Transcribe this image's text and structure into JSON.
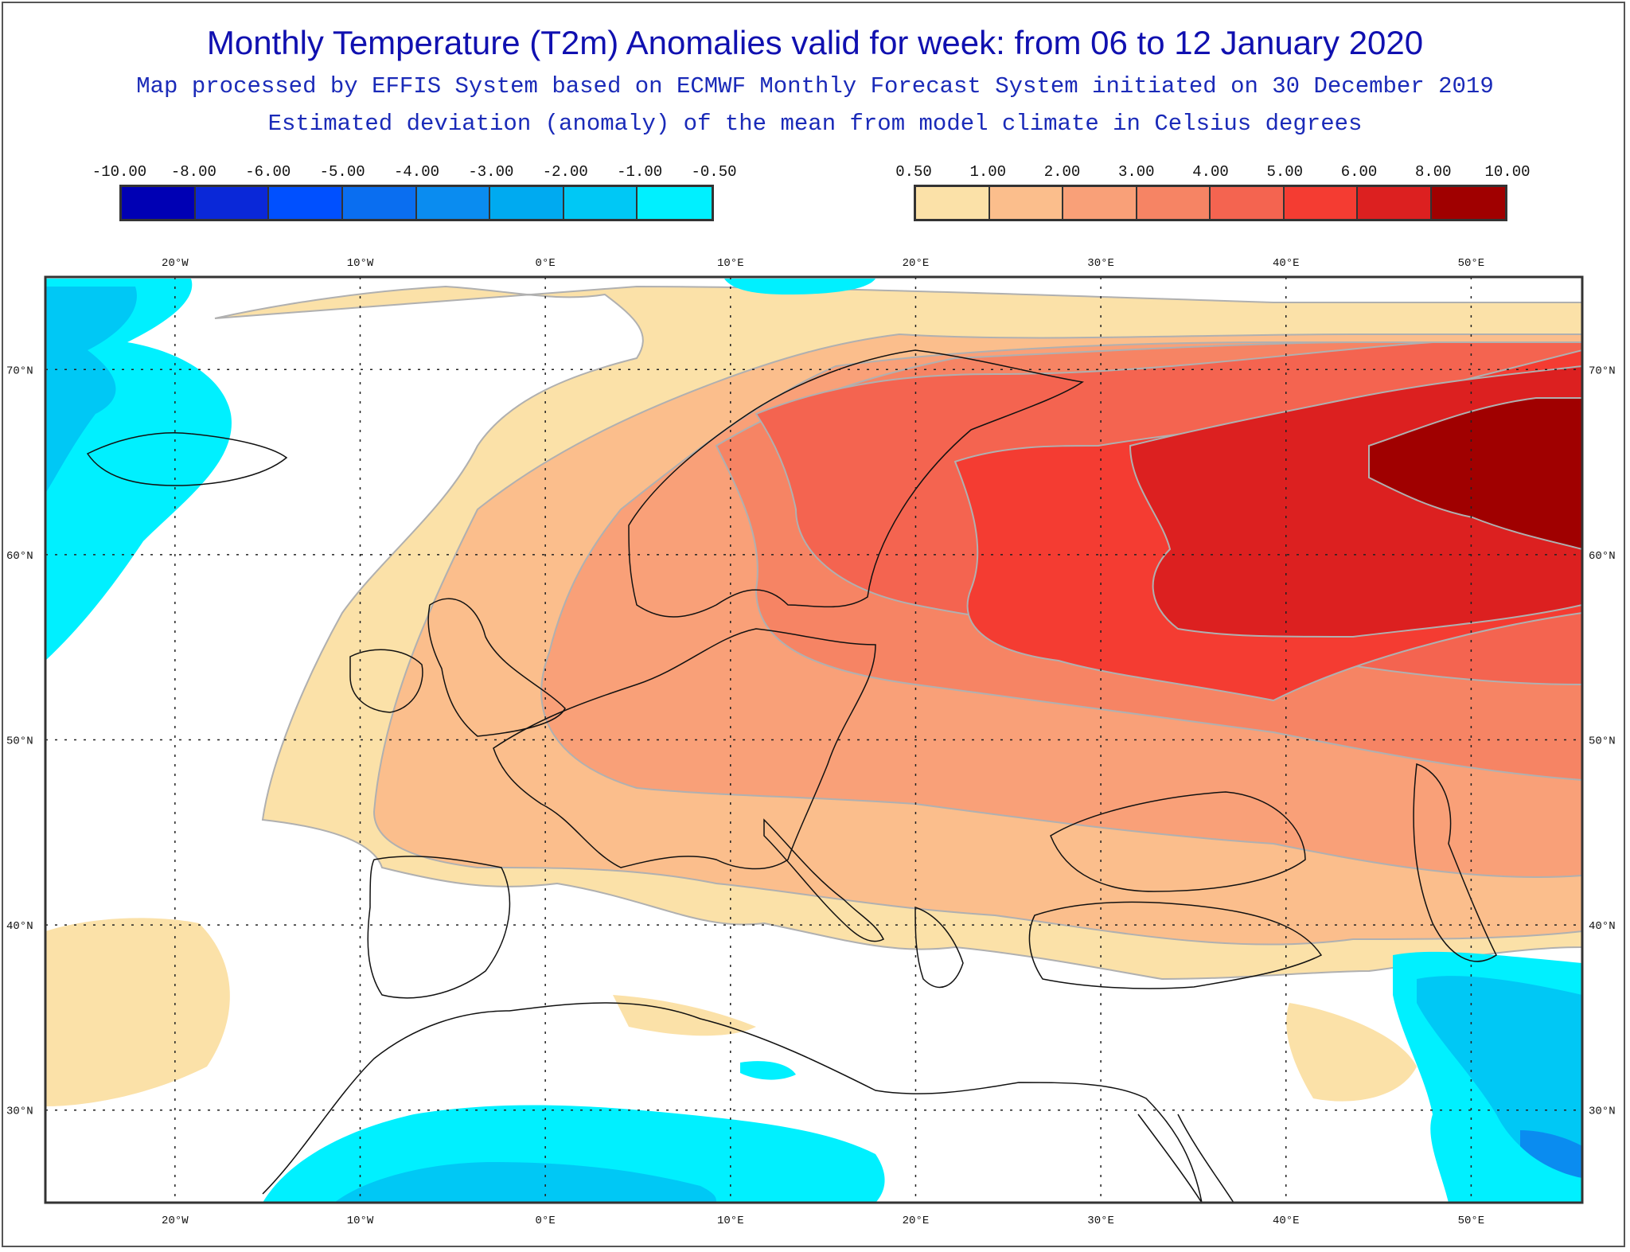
{
  "title": "Monthly Temperature (T2m) Anomalies valid for week: from 06 to 12 January 2020",
  "subtitle1": "Map processed by EFFIS System based on ECMWF Monthly Forecast System initiated on 30 December 2019",
  "subtitle2": "Estimated deviation (anomaly) of the mean from model climate in Celsius degrees",
  "legend_cold": {
    "labels": [
      "-10.00",
      "-8.00",
      "-6.00",
      "-5.00",
      "-4.00",
      "-3.00",
      "-2.00",
      "-1.00",
      "-0.50"
    ],
    "colors": [
      "#0000b4",
      "#0a28d8",
      "#0050ff",
      "#0a6ef0",
      "#0a8cf0",
      "#00aaf0",
      "#00c8f5",
      "#00f0ff"
    ]
  },
  "legend_warm": {
    "labels": [
      "0.50",
      "1.00",
      "2.00",
      "3.00",
      "4.00",
      "5.00",
      "6.00",
      "8.00",
      "10.00"
    ],
    "colors": [
      "#fbe1a8",
      "#fbbe8c",
      "#f9a078",
      "#f68464",
      "#f46450",
      "#f43c32",
      "#dc2020",
      "#a00000"
    ]
  },
  "map": {
    "lon_labels": [
      "20°W",
      "10°W",
      "0°E",
      "10°E",
      "20°E",
      "30°E",
      "40°E",
      "50°E"
    ],
    "lat_labels": [
      "70°N",
      "60°N",
      "50°N",
      "40°N",
      "30°N"
    ],
    "lon_values": [
      -20,
      -10,
      0,
      10,
      20,
      30,
      40,
      50
    ],
    "lat_values": [
      70,
      60,
      50,
      40,
      30
    ],
    "lon_range": [
      -27,
      56
    ],
    "lat_range": [
      25,
      75
    ],
    "grid": "dotted",
    "fill_colors": {
      "c1": "#fbe1a8",
      "c2": "#fbbe8c",
      "c3": "#f9a078",
      "c4": "#f68464",
      "c5": "#f46450",
      "c6": "#f43c32",
      "c7": "#dc2020",
      "c8": "#a00000",
      "cold1": "#00f0ff",
      "cold2": "#00c8f5",
      "cold3": "#0a8cf0"
    }
  }
}
